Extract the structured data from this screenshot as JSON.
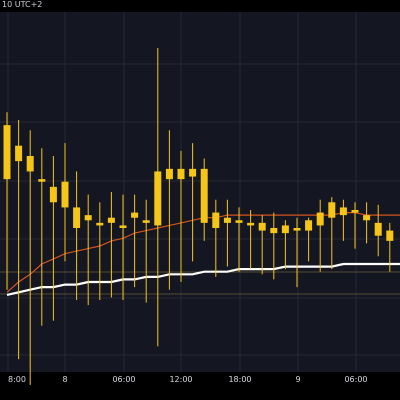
{
  "chart_data": {
    "type": "candlestick",
    "timezone_label": "10 UTC+2",
    "x_tick_labels": [
      "8:00",
      "8",
      "06:00",
      "12:00",
      "18:00",
      "9",
      "06:00"
    ],
    "candles": [
      {
        "o": 226,
        "h": 231,
        "l": 162,
        "c": 205
      },
      {
        "o": 218,
        "h": 228,
        "l": 135,
        "c": 212
      },
      {
        "o": 214,
        "h": 224,
        "l": 125,
        "c": 208
      },
      {
        "o": 205,
        "h": 217,
        "l": 148,
        "c": 204
      },
      {
        "o": 202,
        "h": 214,
        "l": 150,
        "c": 196
      },
      {
        "o": 204,
        "h": 219,
        "l": 173,
        "c": 194
      },
      {
        "o": 194,
        "h": 208,
        "l": 158,
        "c": 186
      },
      {
        "o": 189,
        "h": 199,
        "l": 156,
        "c": 191
      },
      {
        "o": 187,
        "h": 196,
        "l": 158,
        "c": 188
      },
      {
        "o": 190,
        "h": 200,
        "l": 159,
        "c": 188
      },
      {
        "o": 186,
        "h": 199,
        "l": 158,
        "c": 187
      },
      {
        "o": 190,
        "h": 199,
        "l": 163,
        "c": 192
      },
      {
        "o": 189,
        "h": 197,
        "l": 157,
        "c": 188
      },
      {
        "o": 187,
        "h": 256,
        "l": 140,
        "c": 208
      },
      {
        "o": 209,
        "h": 224,
        "l": 162,
        "c": 205
      },
      {
        "o": 205,
        "h": 216,
        "l": 165,
        "c": 209
      },
      {
        "o": 209,
        "h": 219,
        "l": 173,
        "c": 206
      },
      {
        "o": 209,
        "h": 213,
        "l": 181,
        "c": 188
      },
      {
        "o": 186,
        "h": 197,
        "l": 167,
        "c": 192
      },
      {
        "o": 190,
        "h": 197,
        "l": 171,
        "c": 188
      },
      {
        "o": 189,
        "h": 194,
        "l": 169,
        "c": 188
      },
      {
        "o": 188,
        "h": 193,
        "l": 170,
        "c": 187
      },
      {
        "o": 188,
        "h": 191,
        "l": 168,
        "c": 185
      },
      {
        "o": 184,
        "h": 192,
        "l": 166,
        "c": 186
      },
      {
        "o": 184,
        "h": 189,
        "l": 170,
        "c": 187
      },
      {
        "o": 186,
        "h": 190,
        "l": 163,
        "c": 185
      },
      {
        "o": 185,
        "h": 190,
        "l": 173,
        "c": 189
      },
      {
        "o": 187,
        "h": 197,
        "l": 169,
        "c": 192
      },
      {
        "o": 190,
        "h": 198,
        "l": 170,
        "c": 196
      },
      {
        "o": 194,
        "h": 197,
        "l": 181,
        "c": 191
      },
      {
        "o": 192,
        "h": 196,
        "l": 178,
        "c": 193
      },
      {
        "o": 191,
        "h": 196,
        "l": 180,
        "c": 189
      },
      {
        "o": 188,
        "h": 195,
        "l": 175,
        "c": 183
      },
      {
        "o": 185,
        "h": 188,
        "l": 169,
        "c": 181
      }
    ],
    "ma_series": [
      {
        "name": "",
        "color": "#d4541e",
        "values": [
          161,
          165,
          168,
          172,
          174,
          176,
          177,
          178,
          179,
          181,
          182,
          184,
          185,
          186,
          187,
          188,
          189,
          190,
          190,
          191,
          191,
          191,
          191,
          191,
          191,
          191,
          191,
          191,
          191,
          192,
          192,
          191,
          191,
          191
        ]
      },
      {
        "name": "",
        "color": "#ffffff",
        "values": [
          160,
          161,
          162,
          163,
          163,
          164,
          164,
          165,
          165,
          165,
          166,
          166,
          167,
          167,
          168,
          168,
          168,
          169,
          169,
          169,
          170,
          170,
          170,
          170,
          171,
          171,
          171,
          171,
          171,
          172,
          172,
          172,
          172,
          172
        ]
      }
    ],
    "ylim": [
      130,
      270
    ],
    "colors": {
      "background": "#000000",
      "plot_background": "#141721",
      "candle": "#f5c518",
      "grid": "#262a36",
      "reference_line": "#6b5a3a",
      "axis_text": "#d6d9e0"
    },
    "grid": true
  }
}
